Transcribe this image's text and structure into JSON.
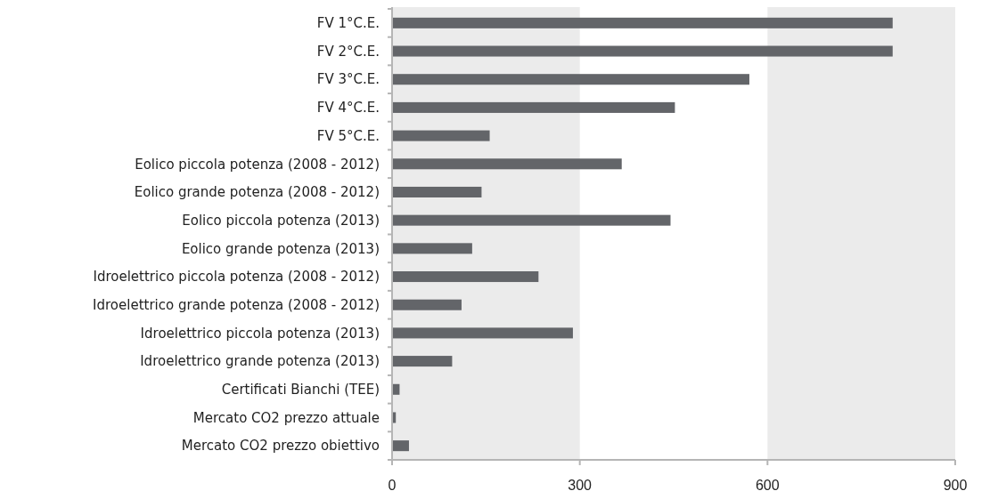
{
  "chart_data": {
    "type": "bar",
    "orientation": "horizontal",
    "categories": [
      "FV 1°C.E.",
      "FV 2°C.E.",
      "FV 3°C.E.",
      "FV 4°C.E.",
      "FV 5°C.E.",
      "Eolico piccola potenza (2008 - 2012)",
      "Eolico grande potenza (2008 - 2012)",
      "Eolico piccola potenza (2013)",
      "Eolico grande potenza (2013)",
      "Idroelettrico piccola potenza (2008 - 2012)",
      "Idroelettrico grande potenza (2008 - 2012)",
      "Idroelettrico piccola potenza (2013)",
      "Idroelettrico grande potenza (2013)",
      "Certificati Bianchi (TEE)",
      "Mercato CO2 prezzo attuale",
      "Mercato CO2 prezzo obiettivo"
    ],
    "values": [
      800,
      800,
      571,
      452,
      156,
      367,
      143,
      445,
      128,
      234,
      111,
      289,
      96,
      12,
      6,
      27
    ],
    "color": "#636569",
    "xlim": [
      0,
      900
    ],
    "xticks": [
      0,
      300,
      600,
      900
    ],
    "bands": [
      {
        "axis": "x",
        "from": 0,
        "to": 300,
        "color": "#ebebeb"
      },
      {
        "axis": "x",
        "from": 600,
        "to": 900,
        "color": "#ebebeb"
      }
    ],
    "grid": false
  }
}
